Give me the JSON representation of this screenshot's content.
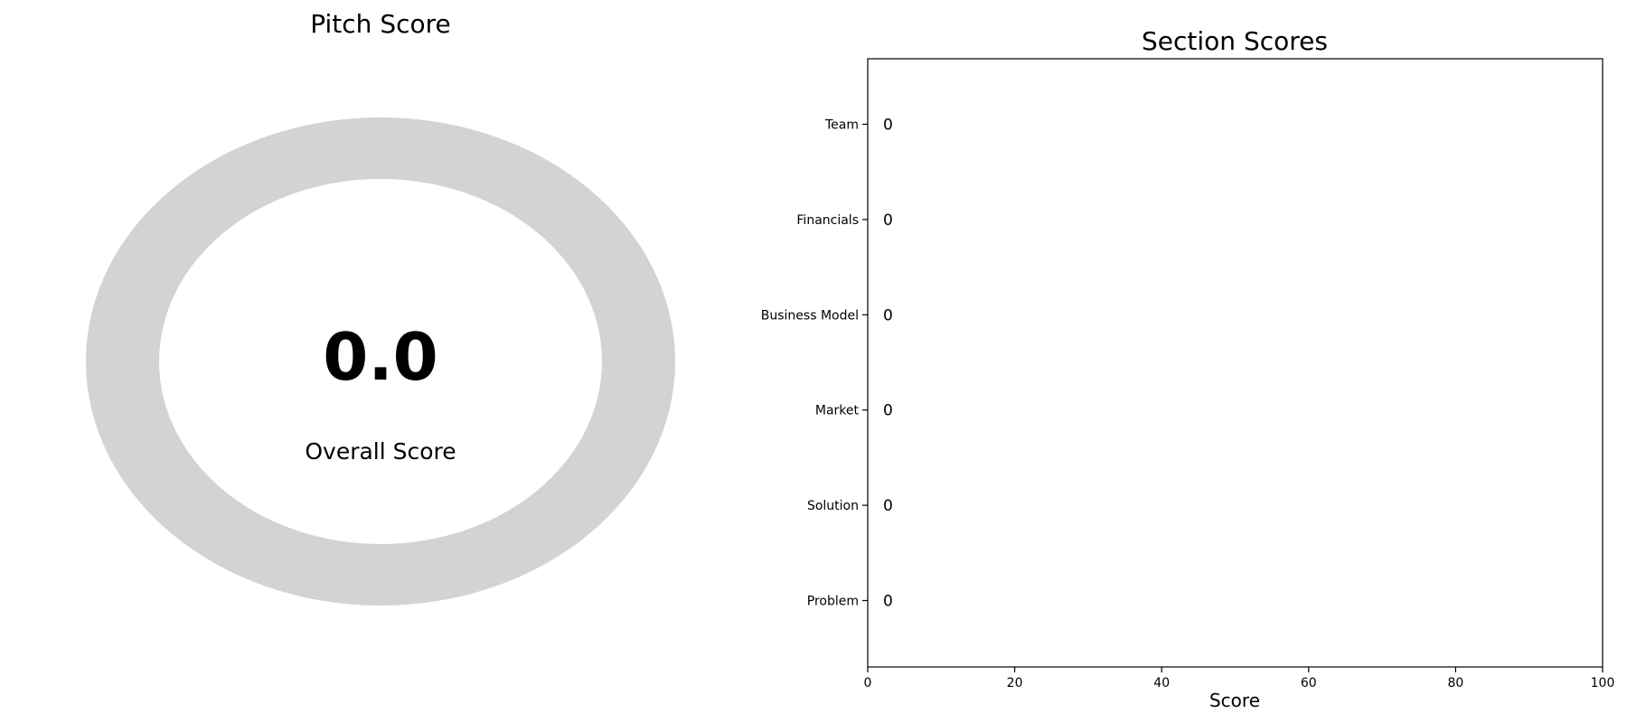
{
  "chart_data": [
    {
      "type": "pie",
      "title": "Pitch Score",
      "center_value": "0.0",
      "center_label": "Overall Score",
      "ring_color": "#d3d3d3",
      "value": 0.0
    },
    {
      "type": "bar",
      "orientation": "horizontal",
      "title": "Section Scores",
      "xlabel": "Score",
      "ylabel": "",
      "xlim": [
        0,
        100
      ],
      "xticks": [
        "0",
        "20",
        "40",
        "60",
        "80",
        "100"
      ],
      "categories": [
        "Team",
        "Financials",
        "Business Model",
        "Market",
        "Solution",
        "Problem"
      ],
      "values": [
        0,
        0,
        0,
        0,
        0,
        0
      ],
      "data_labels": [
        "0",
        "0",
        "0",
        "0",
        "0",
        "0"
      ],
      "grid": false
    }
  ]
}
